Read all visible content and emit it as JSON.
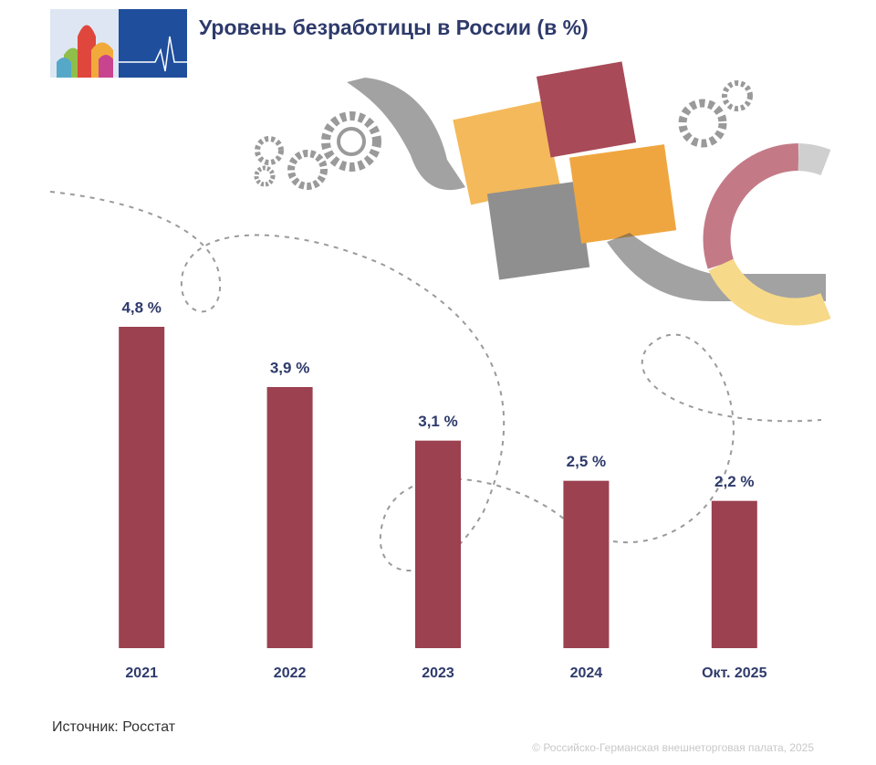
{
  "chart_data": {
    "type": "bar",
    "title": "Уровень безработицы в России (в %)",
    "categories": [
      "2021",
      "2022",
      "2023",
      "2024",
      "Окт. 2025"
    ],
    "values": [
      4.8,
      3.9,
      3.1,
      2.5,
      2.2
    ],
    "value_labels": [
      "4,8 %",
      "3,9 %",
      "3,1 %",
      "2,5 %",
      "2,2 %"
    ],
    "color": "#9b4150",
    "source": "Источник: Росстат",
    "copyright": "© Российско-Германская внешнеторговая палата, 2025"
  }
}
